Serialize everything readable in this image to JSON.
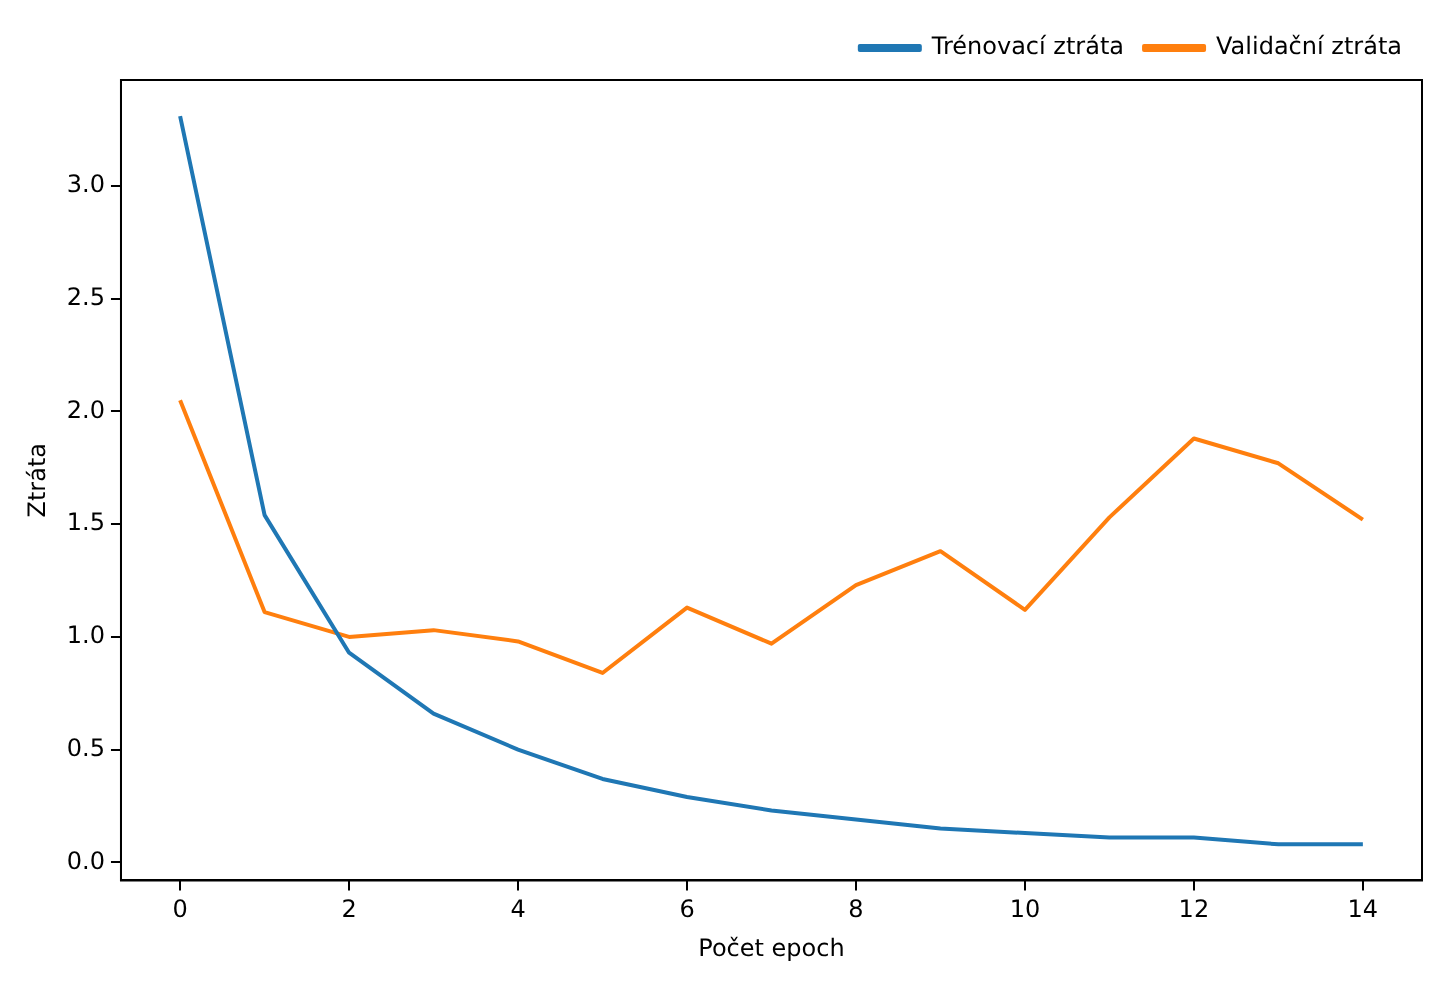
{
  "chart_data": {
    "type": "line",
    "xlabel": "Počet epoch",
    "ylabel": "Ztráta",
    "x": [
      0,
      1,
      2,
      3,
      4,
      5,
      6,
      7,
      8,
      9,
      10,
      11,
      12,
      13,
      14
    ],
    "series": [
      {
        "name": "Trénovací ztráta",
        "color": "#1f77b4",
        "values": [
          3.31,
          1.54,
          0.93,
          0.66,
          0.5,
          0.37,
          0.29,
          0.23,
          0.19,
          0.15,
          0.13,
          0.11,
          0.11,
          0.08,
          0.08
        ]
      },
      {
        "name": "Validační ztráta",
        "color": "#ff7f0e",
        "values": [
          2.05,
          1.11,
          1.0,
          1.03,
          0.98,
          0.84,
          1.13,
          0.97,
          1.23,
          1.38,
          1.12,
          1.53,
          1.88,
          1.77,
          1.52
        ]
      }
    ],
    "xlim": [
      -0.7,
      14.7
    ],
    "ylim": [
      -0.08,
      3.47
    ],
    "xticks": [
      0,
      2,
      4,
      6,
      8,
      10,
      12,
      14
    ],
    "yticks": [
      {
        "value": 0,
        "label": "0.0"
      },
      {
        "value": 0.5,
        "label": "0.5"
      },
      {
        "value": 1,
        "label": "1.0"
      },
      {
        "value": 1.5,
        "label": "1.5"
      },
      {
        "value": 2,
        "label": "2.0"
      },
      {
        "value": 2.5,
        "label": "2.5"
      },
      {
        "value": 3,
        "label": "3.0"
      }
    ],
    "legend": "top right",
    "grid": false,
    "marker": "none",
    "line_style": "solid"
  }
}
